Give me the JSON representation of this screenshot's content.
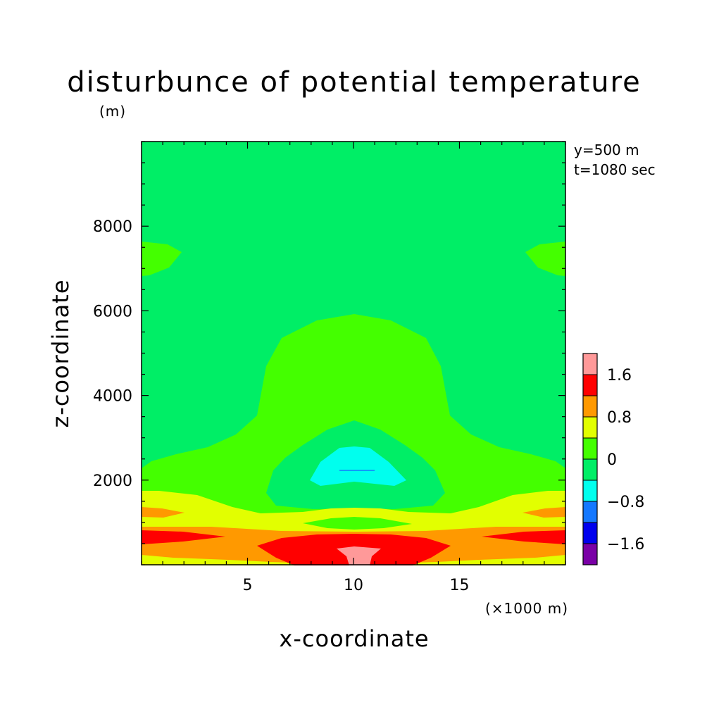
{
  "chart_data": {
    "type": "contour",
    "title": "disturbunce of potential temperature",
    "ylabel": "z-coordinate",
    "yunit": "(m)",
    "xlabel": "x-coordinate",
    "xunit": "(×1000 m)",
    "annotations": [
      "y=500 m",
      "t=1080 sec"
    ],
    "xlim": [
      0,
      20
    ],
    "ylim": [
      0,
      10000
    ],
    "xticks": [
      5,
      10,
      15
    ],
    "xtick_labels": [
      "5",
      "10",
      "15"
    ],
    "yticks": [
      2000,
      4000,
      6000,
      8000
    ],
    "ytick_labels": [
      "2000",
      "4000",
      "6000",
      "8000"
    ],
    "colorbar": {
      "levels": [
        -2.0,
        -1.6,
        -1.2,
        -0.8,
        -0.4,
        0,
        0.4,
        0.8,
        1.2,
        1.6,
        2.0
      ],
      "tick_labels": [
        "1.6",
        "0.8",
        "0",
        "−0.8",
        "−1.6"
      ],
      "tick_values": [
        1.6,
        0.8,
        0,
        -0.8,
        -1.6
      ],
      "colors": [
        "#7a00a6",
        "#0000ee",
        "#1478ff",
        "#00ffee",
        "#00ee66",
        "#44ff00",
        "#e2ff00",
        "#ff9900",
        "#ff0000",
        "#ff9999"
      ]
    },
    "background_range": [
      0.0,
      0.4
    ]
  }
}
